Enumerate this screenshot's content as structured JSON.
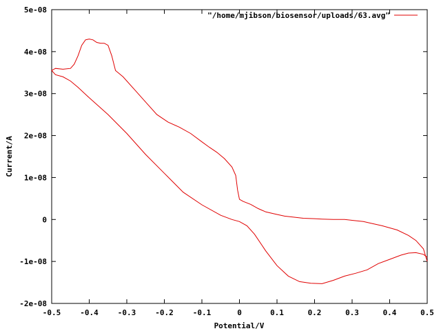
{
  "colors": {
    "series": "#e00000",
    "axis": "#000000",
    "background": "#ffffff"
  },
  "chart_data": {
    "type": "line",
    "title": "",
    "xlabel": "Potential/V",
    "ylabel": "Current/A",
    "xlim": [
      -0.5,
      0.5
    ],
    "ylim": [
      -2e-08,
      5e-08
    ],
    "grid": false,
    "legend_position": "top-right",
    "x_ticks": [
      {
        "value": -0.5,
        "label": "-0.5"
      },
      {
        "value": -0.4,
        "label": "-0.4"
      },
      {
        "value": -0.3,
        "label": "-0.3"
      },
      {
        "value": -0.2,
        "label": "-0.2"
      },
      {
        "value": -0.1,
        "label": "-0.1"
      },
      {
        "value": 0,
        "label": "0"
      },
      {
        "value": 0.1,
        "label": "0.1"
      },
      {
        "value": 0.2,
        "label": "0.2"
      },
      {
        "value": 0.3,
        "label": "0.3"
      },
      {
        "value": 0.4,
        "label": "0.4"
      },
      {
        "value": 0.5,
        "label": "0.5"
      }
    ],
    "y_ticks": [
      {
        "value": -2e-08,
        "label": "-2e-08"
      },
      {
        "value": -1e-08,
        "label": "-1e-08"
      },
      {
        "value": 0,
        "label": "0"
      },
      {
        "value": 1e-08,
        "label": "1e-08"
      },
      {
        "value": 2e-08,
        "label": "2e-08"
      },
      {
        "value": 3e-08,
        "label": "3e-08"
      },
      {
        "value": 4e-08,
        "label": "4e-08"
      },
      {
        "value": 5e-08,
        "label": "5e-08"
      }
    ],
    "series": [
      {
        "name": "\"/home/mjibson/biosensor/uploads/63.avg\"",
        "color": "#e00000",
        "x": [
          0.5,
          0.49,
          0.47,
          0.45,
          0.42,
          0.38,
          0.35,
          0.33,
          0.3,
          0.28,
          0.25,
          0.22,
          0.2,
          0.17,
          0.15,
          0.12,
          0.1,
          0.07,
          0.05,
          0.03,
          0.01,
          0.0,
          -0.005,
          -0.01,
          -0.02,
          -0.04,
          -0.06,
          -0.08,
          -0.1,
          -0.13,
          -0.16,
          -0.19,
          -0.22,
          -0.25,
          -0.28,
          -0.31,
          -0.33,
          -0.34,
          -0.35,
          -0.36,
          -0.37,
          -0.38,
          -0.39,
          -0.4,
          -0.41,
          -0.42,
          -0.43,
          -0.44,
          -0.45,
          -0.47,
          -0.49,
          -0.5,
          -0.49,
          -0.47,
          -0.45,
          -0.43,
          -0.4,
          -0.35,
          -0.3,
          -0.25,
          -0.2,
          -0.15,
          -0.1,
          -0.05,
          -0.02,
          0.0,
          0.02,
          0.04,
          0.07,
          0.1,
          0.13,
          0.16,
          0.19,
          0.22,
          0.25,
          0.28,
          0.31,
          0.34,
          0.37,
          0.4,
          0.43,
          0.45,
          0.47,
          0.49,
          0.5
        ],
        "y": [
          -1e-08,
          -7e-09,
          -5e-09,
          -3.8e-09,
          -2.5e-09,
          -1.5e-09,
          -9e-10,
          -5e-10,
          -2e-10,
          0.0,
          0.0,
          1e-10,
          2e-10,
          3e-10,
          5e-10,
          8e-10,
          1.2e-09,
          1.8e-09,
          2.6e-09,
          3.6e-09,
          4.3e-09,
          4.8e-09,
          7e-09,
          1.05e-08,
          1.25e-08,
          1.45e-08,
          1.6e-08,
          1.72e-08,
          1.85e-08,
          2.05e-08,
          2.2e-08,
          2.32e-08,
          2.5e-08,
          2.8e-08,
          3.1e-08,
          3.4e-08,
          3.55e-08,
          3.9e-08,
          4.15e-08,
          4.2e-08,
          4.2e-08,
          4.22e-08,
          4.28e-08,
          4.3e-08,
          4.28e-08,
          4.15e-08,
          3.9e-08,
          3.7e-08,
          3.6e-08,
          3.58e-08,
          3.6e-08,
          3.55e-08,
          3.45e-08,
          3.4e-08,
          3.3e-08,
          3.15e-08,
          2.9e-08,
          2.5e-08,
          2.05e-08,
          1.55e-08,
          1.1e-08,
          6.5e-09,
          3.5e-09,
          1e-09,
          0.0,
          -5e-10,
          -1.5e-09,
          -3.5e-09,
          -7.5e-09,
          -1.1e-08,
          -1.35e-08,
          -1.48e-08,
          -1.52e-08,
          -1.53e-08,
          -1.45e-08,
          -1.35e-08,
          -1.28e-08,
          -1.2e-08,
          -1.05e-08,
          -9.5e-09,
          -8.5e-09,
          -8e-09,
          -7.9e-09,
          -8.3e-09,
          -9e-09
        ]
      }
    ]
  }
}
